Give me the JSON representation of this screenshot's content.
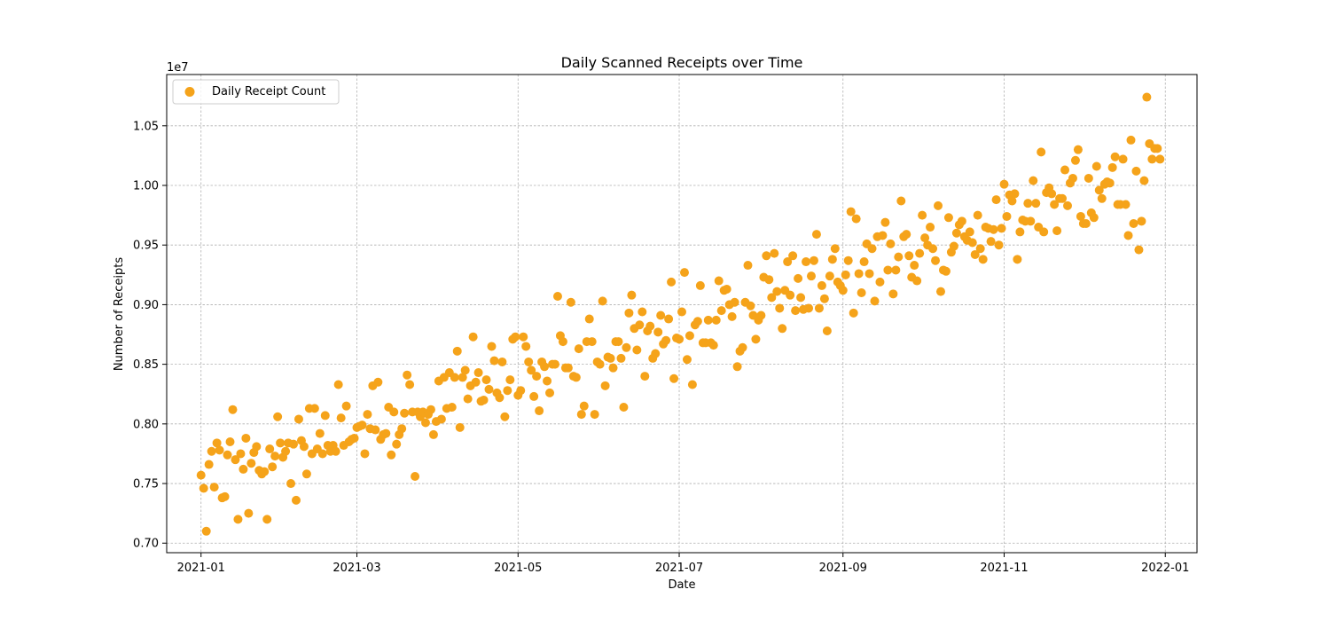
{
  "chart_data": {
    "type": "scatter",
    "title": "Daily Scanned Receipts over Time",
    "xlabel": "Date",
    "ylabel": "Number of Receipts",
    "y_scale_label": "1e7",
    "x_ticks": [
      "2021-01",
      "2021-03",
      "2021-05",
      "2021-07",
      "2021-09",
      "2021-11",
      "2022-01"
    ],
    "y_ticks": [
      "0.70",
      "0.75",
      "0.80",
      "0.85",
      "0.90",
      "0.95",
      "1.00",
      "1.05"
    ],
    "xlim": [
      "2020-12-19",
      "2022-01-13"
    ],
    "ylim": [
      0.692,
      1.093
    ],
    "y_multiplier": 10000000,
    "grid": true,
    "legend_position": "top-left",
    "marker_color": "#f5a31a",
    "series": [
      {
        "name": "Daily Receipt Count",
        "start_date": "2021-01-01",
        "values": [
          0.757,
          0.746,
          0.71,
          0.766,
          0.777,
          0.747,
          0.784,
          0.778,
          0.738,
          0.739,
          0.774,
          0.785,
          0.812,
          0.77,
          0.72,
          0.775,
          0.762,
          0.788,
          0.725,
          0.767,
          0.776,
          0.781,
          0.761,
          0.758,
          0.76,
          0.72,
          0.779,
          0.764,
          0.773,
          0.806,
          0.784,
          0.772,
          0.777,
          0.784,
          0.75,
          0.783,
          0.736,
          0.804,
          0.786,
          0.781,
          0.758,
          0.813,
          0.775,
          0.813,
          0.779,
          0.792,
          0.775,
          0.807,
          0.782,
          0.777,
          0.782,
          0.777,
          0.833,
          0.805,
          0.782,
          0.815,
          0.785,
          0.787,
          0.788,
          0.797,
          0.798,
          0.799,
          0.775,
          0.808,
          0.796,
          0.832,
          0.795,
          0.835,
          0.787,
          0.791,
          0.792,
          0.814,
          0.774,
          0.81,
          0.783,
          0.791,
          0.796,
          0.809,
          0.841,
          0.833,
          0.81,
          0.756,
          0.81,
          0.806,
          0.81,
          0.801,
          0.808,
          0.812,
          0.791,
          0.802,
          0.836,
          0.804,
          0.839,
          0.813,
          0.843,
          0.814,
          0.839,
          0.861,
          0.797,
          0.839,
          0.845,
          0.821,
          0.832,
          0.873,
          0.835,
          0.843,
          0.819,
          0.82,
          0.837,
          0.829,
          0.865,
          0.853,
          0.826,
          0.822,
          0.852,
          0.806,
          0.828,
          0.837,
          0.871,
          0.873,
          0.824,
          0.828,
          0.873,
          0.865,
          0.852,
          0.845,
          0.823,
          0.84,
          0.811,
          0.852,
          0.848,
          0.836,
          0.826,
          0.85,
          0.85,
          0.907,
          0.874,
          0.869,
          0.847,
          0.847,
          0.902,
          0.84,
          0.839,
          0.863,
          0.808,
          0.815,
          0.869,
          0.888,
          0.869,
          0.808,
          0.852,
          0.85,
          0.903,
          0.832,
          0.856,
          0.855,
          0.847,
          0.869,
          0.869,
          0.855,
          0.814,
          0.864,
          0.893,
          0.908,
          0.88,
          0.862,
          0.883,
          0.894,
          0.84,
          0.878,
          0.882,
          0.855,
          0.859,
          0.877,
          0.891,
          0.867,
          0.87,
          0.888,
          0.919,
          0.838,
          0.872,
          0.871,
          0.894,
          0.927,
          0.854,
          0.874,
          0.833,
          0.883,
          0.886,
          0.916,
          0.868,
          0.868,
          0.887,
          0.868,
          0.866,
          0.887,
          0.92,
          0.895,
          0.912,
          0.913,
          0.9,
          0.89,
          0.902,
          0.848,
          0.861,
          0.864,
          0.902,
          0.933,
          0.899,
          0.891,
          0.871,
          0.887,
          0.891,
          0.923,
          0.941,
          0.921,
          0.906,
          0.943,
          0.911,
          0.897,
          0.88,
          0.912,
          0.936,
          0.908,
          0.941,
          0.895,
          0.922,
          0.906,
          0.896,
          0.936,
          0.897,
          0.924,
          0.937,
          0.959,
          0.897,
          0.916,
          0.905,
          0.878,
          0.924,
          0.938,
          0.947,
          0.919,
          0.916,
          0.912,
          0.925,
          0.937,
          0.978,
          0.893,
          0.972,
          0.926,
          0.91,
          0.936,
          0.951,
          0.926,
          0.947,
          0.903,
          0.957,
          0.919,
          0.958,
          0.969,
          0.929,
          0.951,
          0.909,
          0.929,
          0.94,
          0.987,
          0.957,
          0.959,
          0.941,
          0.923,
          0.933,
          0.92,
          0.943,
          0.975,
          0.956,
          0.95,
          0.965,
          0.947,
          0.937,
          0.983,
          0.911,
          0.929,
          0.928,
          0.973,
          0.944,
          0.949,
          0.96,
          0.967,
          0.97,
          0.957,
          0.954,
          0.961,
          0.952,
          0.942,
          0.975,
          0.947,
          0.938,
          0.965,
          0.964,
          0.953,
          0.963,
          0.988,
          0.95,
          0.964,
          1.001,
          0.974,
          0.992,
          0.987,
          0.993,
          0.938,
          0.961,
          0.971,
          0.97,
          0.985,
          0.97,
          1.004,
          0.985,
          0.965,
          1.028,
          0.961,
          0.994,
          0.998,
          0.993,
          0.984,
          0.962,
          0.989,
          0.989,
          1.013,
          0.983,
          1.002,
          1.006,
          1.021,
          1.03,
          0.974,
          0.968,
          0.968,
          1.006,
          0.977,
          0.973,
          1.016,
          0.996,
          0.989,
          1.001,
          1.003,
          1.002,
          1.015,
          1.024,
          0.984,
          0.984,
          1.022,
          0.984,
          0.958,
          1.038,
          0.968,
          1.012,
          0.946,
          0.97,
          1.004,
          1.074,
          1.035,
          1.022,
          1.031,
          1.031,
          1.022
        ]
      }
    ]
  }
}
